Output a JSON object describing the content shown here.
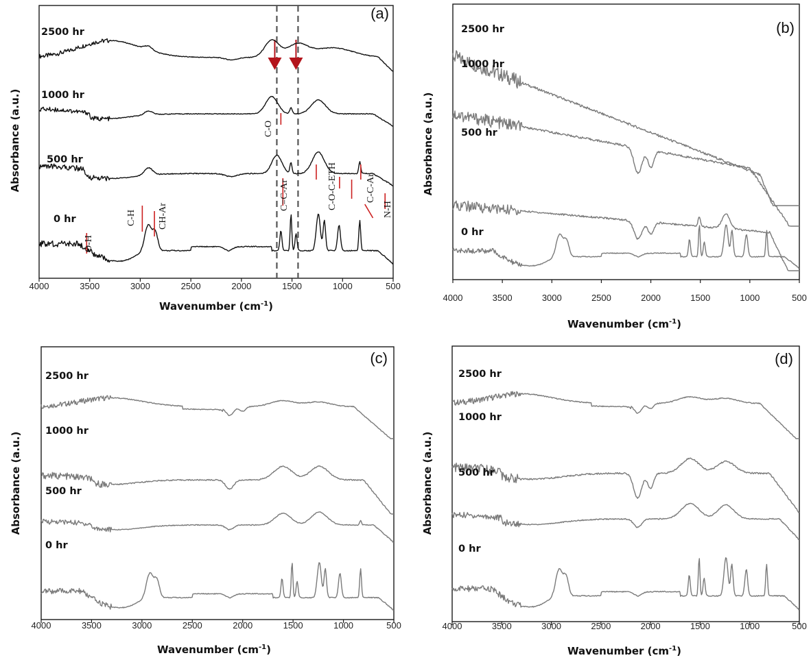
{
  "colors": {
    "a_curve": "#111111",
    "gray_curve": "#7a7a7a",
    "marker": "#cc1f1f",
    "arrow": "#b3141b",
    "guide": "#555555"
  },
  "chart_data": [
    {
      "type": "line",
      "panel_label": "(a)",
      "xlabel": "Wavenumber (cm",
      "xlabel_sup": "-1",
      "xlabel_tail": ")",
      "ylabel": "Absorbance (a.u.)",
      "xlim": [
        4000,
        500
      ],
      "xticks": [
        "4000",
        "3500",
        "3000",
        "2500",
        "2000",
        "1500",
        "1000",
        "500"
      ],
      "series": [
        {
          "name": "2500 hr",
          "profile": "aged-late"
        },
        {
          "name": "1000 hr",
          "profile": "aged-mid"
        },
        {
          "name": "500 hr",
          "profile": "aged-early"
        },
        {
          "name": "0 hr",
          "profile": "fresh"
        }
      ],
      "guide_lines": [
        1650,
        1440
      ],
      "peak_labels": [
        "O-H",
        "C-H",
        "CH-Ar",
        "C-O",
        "C=C-Ar",
        "C-O-C-ETH",
        "C-C-Ar",
        "N-H"
      ]
    },
    {
      "type": "line",
      "panel_label": "(b)",
      "xlabel": "Wavenumber (cm",
      "xlabel_sup": "-1",
      "xlabel_tail": ")",
      "ylabel": "Absorbance (a.u.)",
      "xlim": [
        4000,
        500
      ],
      "xticks": [
        "4000",
        "3500",
        "3000",
        "2500",
        "2000",
        "1500",
        "1000",
        "500"
      ],
      "series": [
        {
          "name": "2500 hr",
          "profile": "sloped-late"
        },
        {
          "name": "1000 hr",
          "profile": "sloped-mid"
        },
        {
          "name": "500 hr",
          "profile": "sloped-early"
        },
        {
          "name": "0 hr",
          "profile": "fresh"
        }
      ]
    },
    {
      "type": "line",
      "panel_label": "(c)",
      "xlabel": "Wavenumber (cm",
      "xlabel_sup": "-1",
      "xlabel_tail": ")",
      "ylabel": "Absorbance (a.u.)",
      "xlim": [
        4000,
        500
      ],
      "xticks": [
        "4000",
        "3500",
        "3000",
        "2500",
        "2000",
        "1500",
        "1000",
        "500"
      ],
      "series": [
        {
          "name": "2500 hr",
          "profile": "smooth-late"
        },
        {
          "name": "1000 hr",
          "profile": "smooth-mid"
        },
        {
          "name": "500 hr",
          "profile": "smooth-early"
        },
        {
          "name": "0 hr",
          "profile": "fresh"
        }
      ]
    },
    {
      "type": "line",
      "panel_label": "(d)",
      "xlabel": "Wavenumber (cm",
      "xlabel_sup": "-1",
      "xlabel_tail": ")",
      "ylabel": "Absorbance (a.u.)",
      "xlim": [
        4000,
        500
      ],
      "xticks": [
        "4000",
        "3500",
        "3000",
        "2500",
        "2000",
        "1500",
        "1000",
        "500"
      ],
      "series": [
        {
          "name": "2500 hr",
          "profile": "smooth-late"
        },
        {
          "name": "1000 hr",
          "profile": "dip-mid"
        },
        {
          "name": "500 hr",
          "profile": "dip-early"
        },
        {
          "name": "0 hr",
          "profile": "fresh"
        }
      ]
    }
  ]
}
